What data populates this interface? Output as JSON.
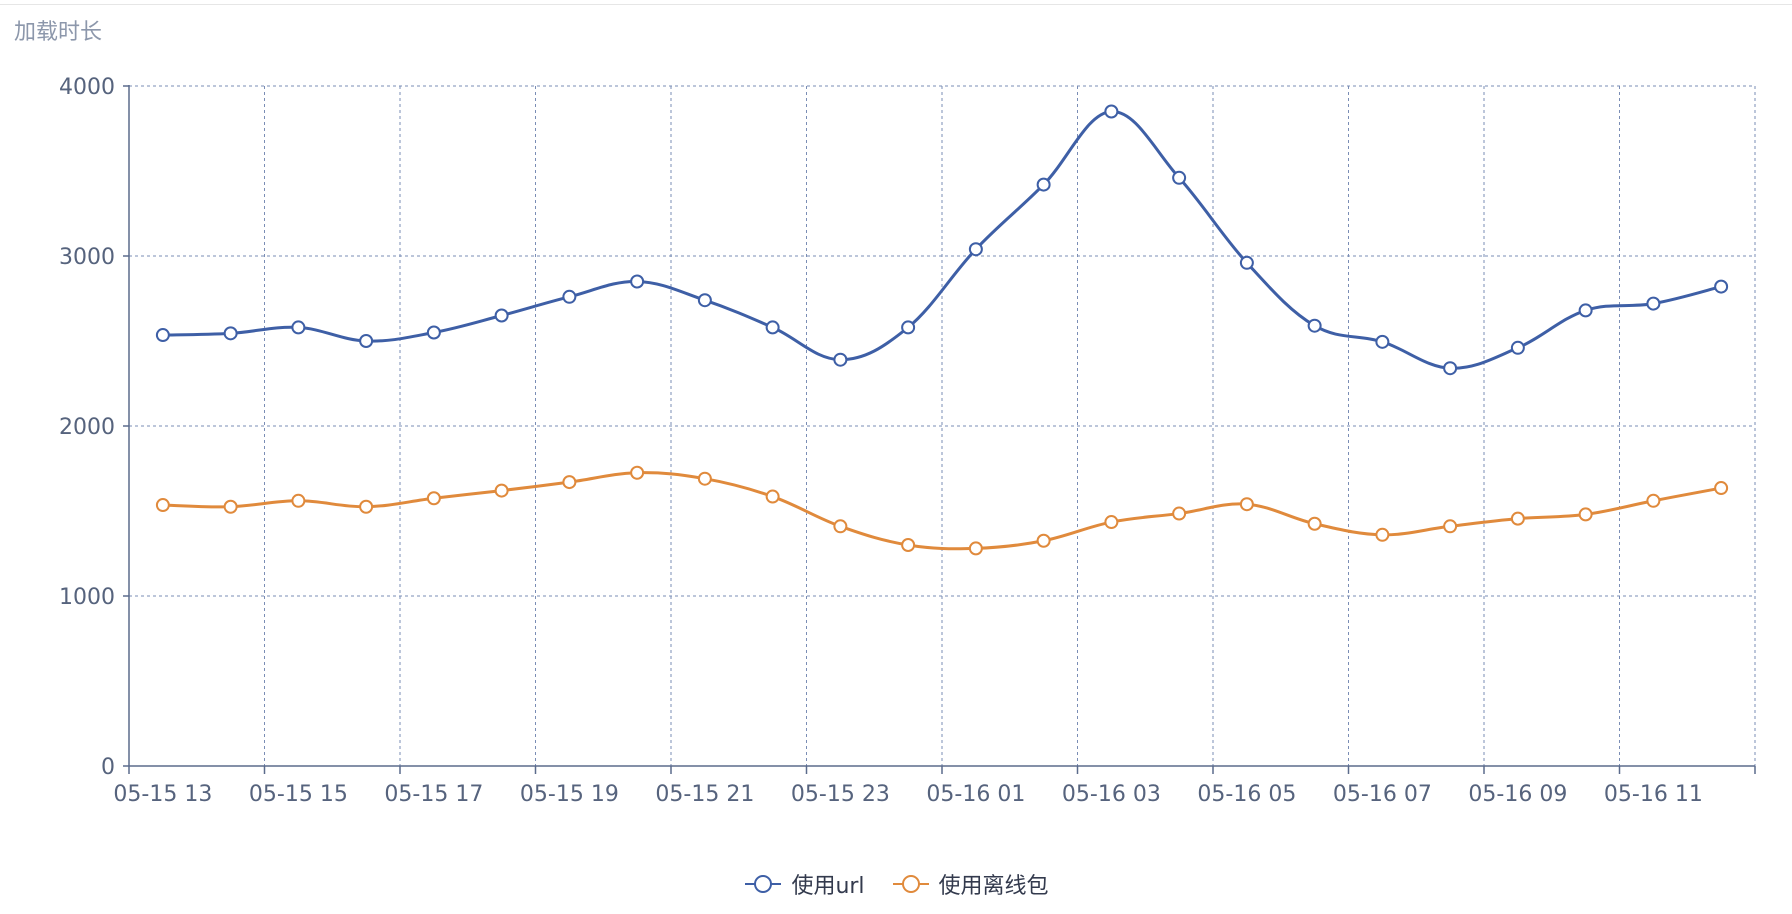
{
  "chart_data": {
    "type": "line",
    "title": "加载时长",
    "categories": [
      "05-15 13",
      "05-15 14",
      "05-15 15",
      "05-15 16",
      "05-15 17",
      "05-15 18",
      "05-15 19",
      "05-15 20",
      "05-15 21",
      "05-15 22",
      "05-15 23",
      "05-16 00",
      "05-16 01",
      "05-16 02",
      "05-16 03",
      "05-16 04",
      "05-16 05",
      "05-16 06",
      "05-16 07",
      "05-16 08",
      "05-16 09",
      "05-16 10",
      "05-16 11",
      "05-16 12"
    ],
    "x_tick_labels": [
      "05-15 13",
      "05-15 15",
      "05-15 17",
      "05-15 19",
      "05-15 21",
      "05-15 23",
      "05-16 01",
      "05-16 03",
      "05-16 05",
      "05-16 07",
      "05-16 09",
      "05-16 11"
    ],
    "y_ticks": [
      0,
      1000,
      2000,
      3000,
      4000
    ],
    "ylim": [
      0,
      4000
    ],
    "grid": true,
    "legend_position": "bottom-center",
    "series": [
      {
        "name": "使用url",
        "color": "#3e5fa6",
        "values": [
          2535,
          2545,
          2580,
          2500,
          2550,
          2650,
          2760,
          2850,
          2740,
          2580,
          2390,
          2580,
          3040,
          3420,
          3850,
          3460,
          2960,
          2590,
          2495,
          2340,
          2460,
          2680,
          2720,
          2820
        ]
      },
      {
        "name": "使用离线包",
        "color": "#e08a3c",
        "values": [
          1535,
          1525,
          1560,
          1525,
          1575,
          1620,
          1670,
          1725,
          1690,
          1585,
          1410,
          1300,
          1280,
          1325,
          1435,
          1485,
          1540,
          1425,
          1360,
          1410,
          1455,
          1480,
          1560,
          1635
        ]
      }
    ]
  }
}
